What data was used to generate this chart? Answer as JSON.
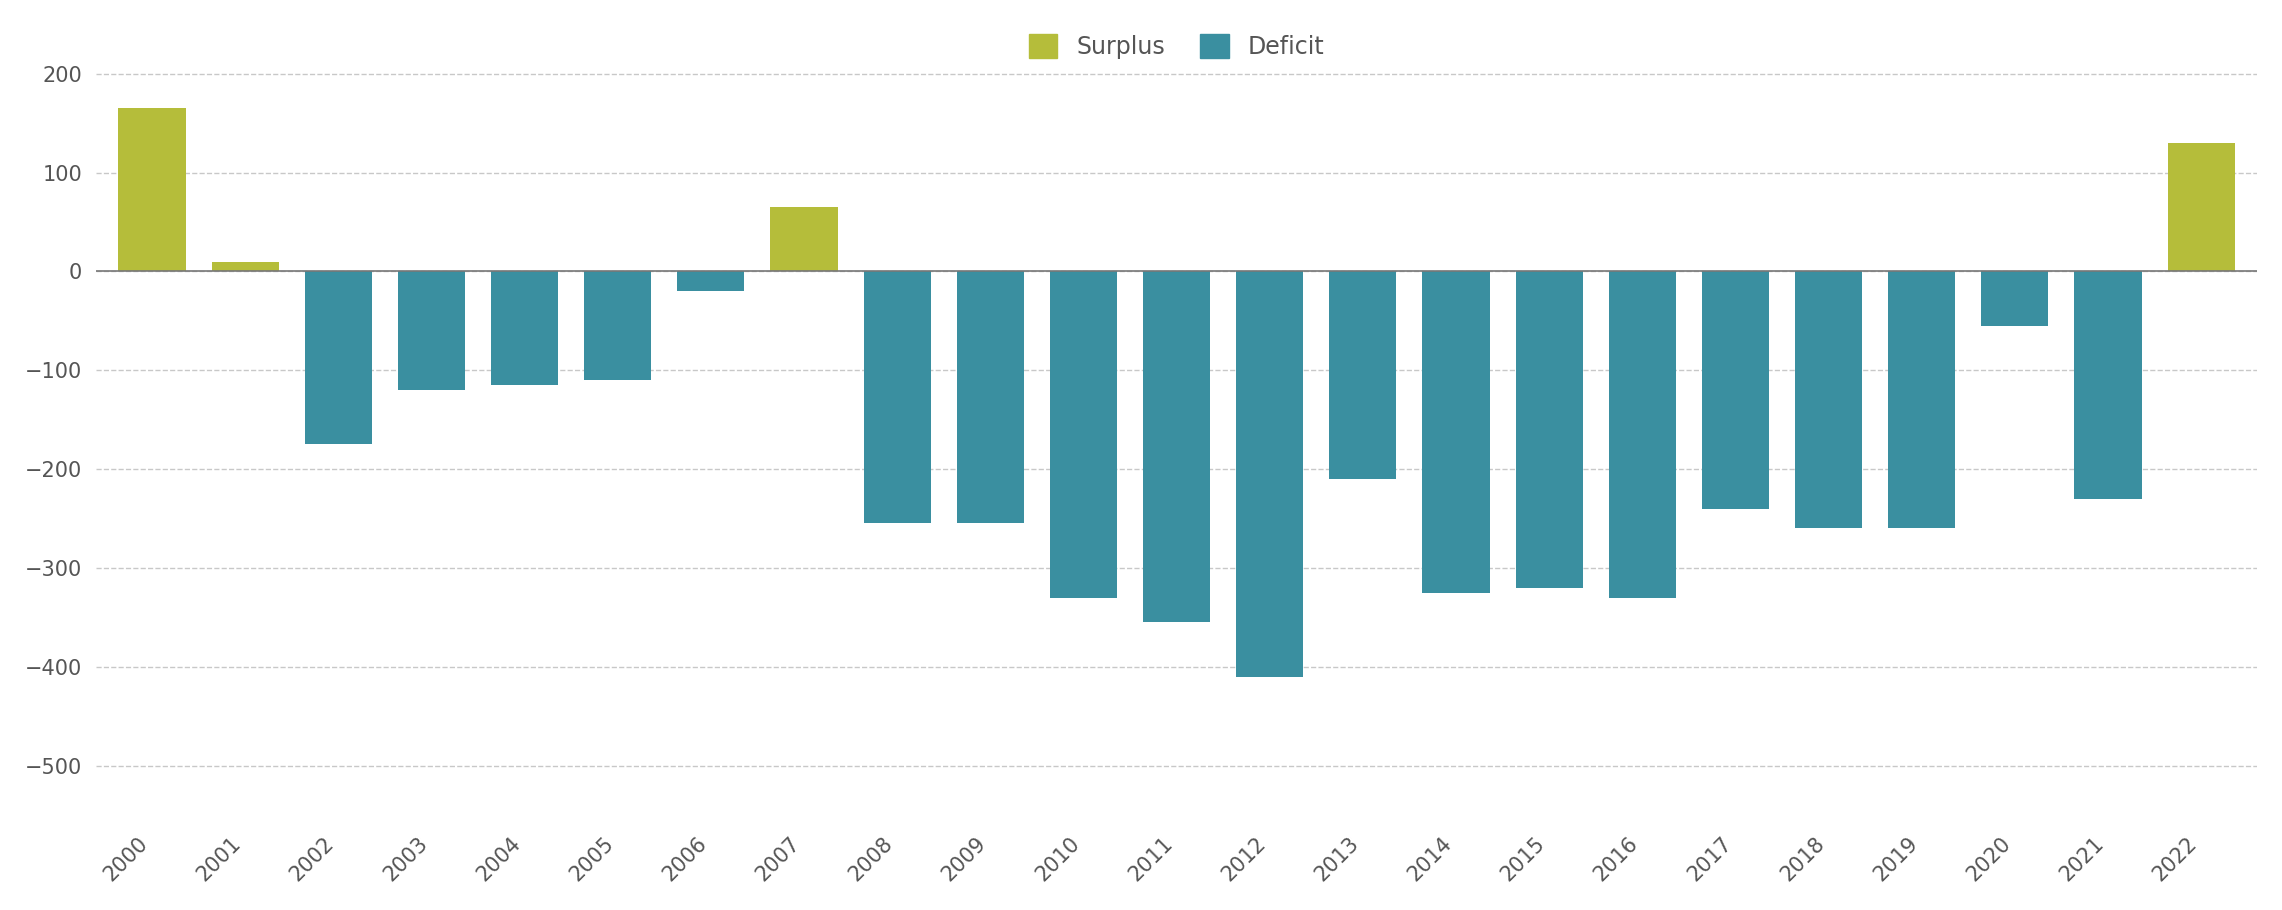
{
  "years": [
    2000,
    2001,
    2002,
    2003,
    2004,
    2005,
    2006,
    2007,
    2008,
    2009,
    2010,
    2011,
    2012,
    2013,
    2014,
    2015,
    2016,
    2017,
    2018,
    2019,
    2020,
    2021,
    2022
  ],
  "values": [
    165,
    10,
    -175,
    -120,
    -115,
    -110,
    -20,
    65,
    -255,
    -255,
    -330,
    -355,
    -410,
    -210,
    -325,
    -320,
    -330,
    -240,
    -260,
    -260,
    -55,
    -230,
    130
  ],
  "surplus_color": "#b5bd3a",
  "deficit_color": "#3a8fa0",
  "background_color": "#ffffff",
  "ylim": [
    -560,
    240
  ],
  "yticks": [
    -500,
    -400,
    -300,
    -200,
    -100,
    0,
    100,
    200
  ],
  "grid_color": "#c8c8c8",
  "axis_label_color": "#555555",
  "legend_surplus_label": "Surplus",
  "legend_deficit_label": "Deficit",
  "bar_width": 0.72,
  "tick_fontsize": 15,
  "legend_fontsize": 17
}
